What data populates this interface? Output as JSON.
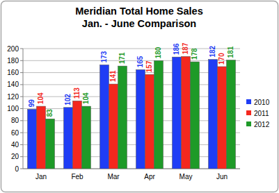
{
  "chart_data": {
    "type": "bar",
    "title": [
      "Meridian Total Home Sales",
      "Jan. - June Comparison"
    ],
    "categories": [
      "Jan",
      "Feb",
      "Mar",
      "Apr",
      "May",
      "Jun"
    ],
    "series": [
      {
        "name": "2010",
        "color": "#1f3df5",
        "values": [
          99,
          102,
          173,
          165,
          186,
          182
        ]
      },
      {
        "name": "2011",
        "color": "#f4281e",
        "values": [
          104,
          113,
          141,
          157,
          187,
          170
        ]
      },
      {
        "name": "2012",
        "color": "#1e9a28",
        "values": [
          83,
          104,
          171,
          180,
          178,
          181
        ]
      }
    ],
    "ylim": [
      0,
      200
    ],
    "yticks": [
      0,
      20,
      40,
      60,
      80,
      100,
      120,
      140,
      160,
      180,
      200
    ],
    "grid": true,
    "legend": "right",
    "data_labels": true
  }
}
